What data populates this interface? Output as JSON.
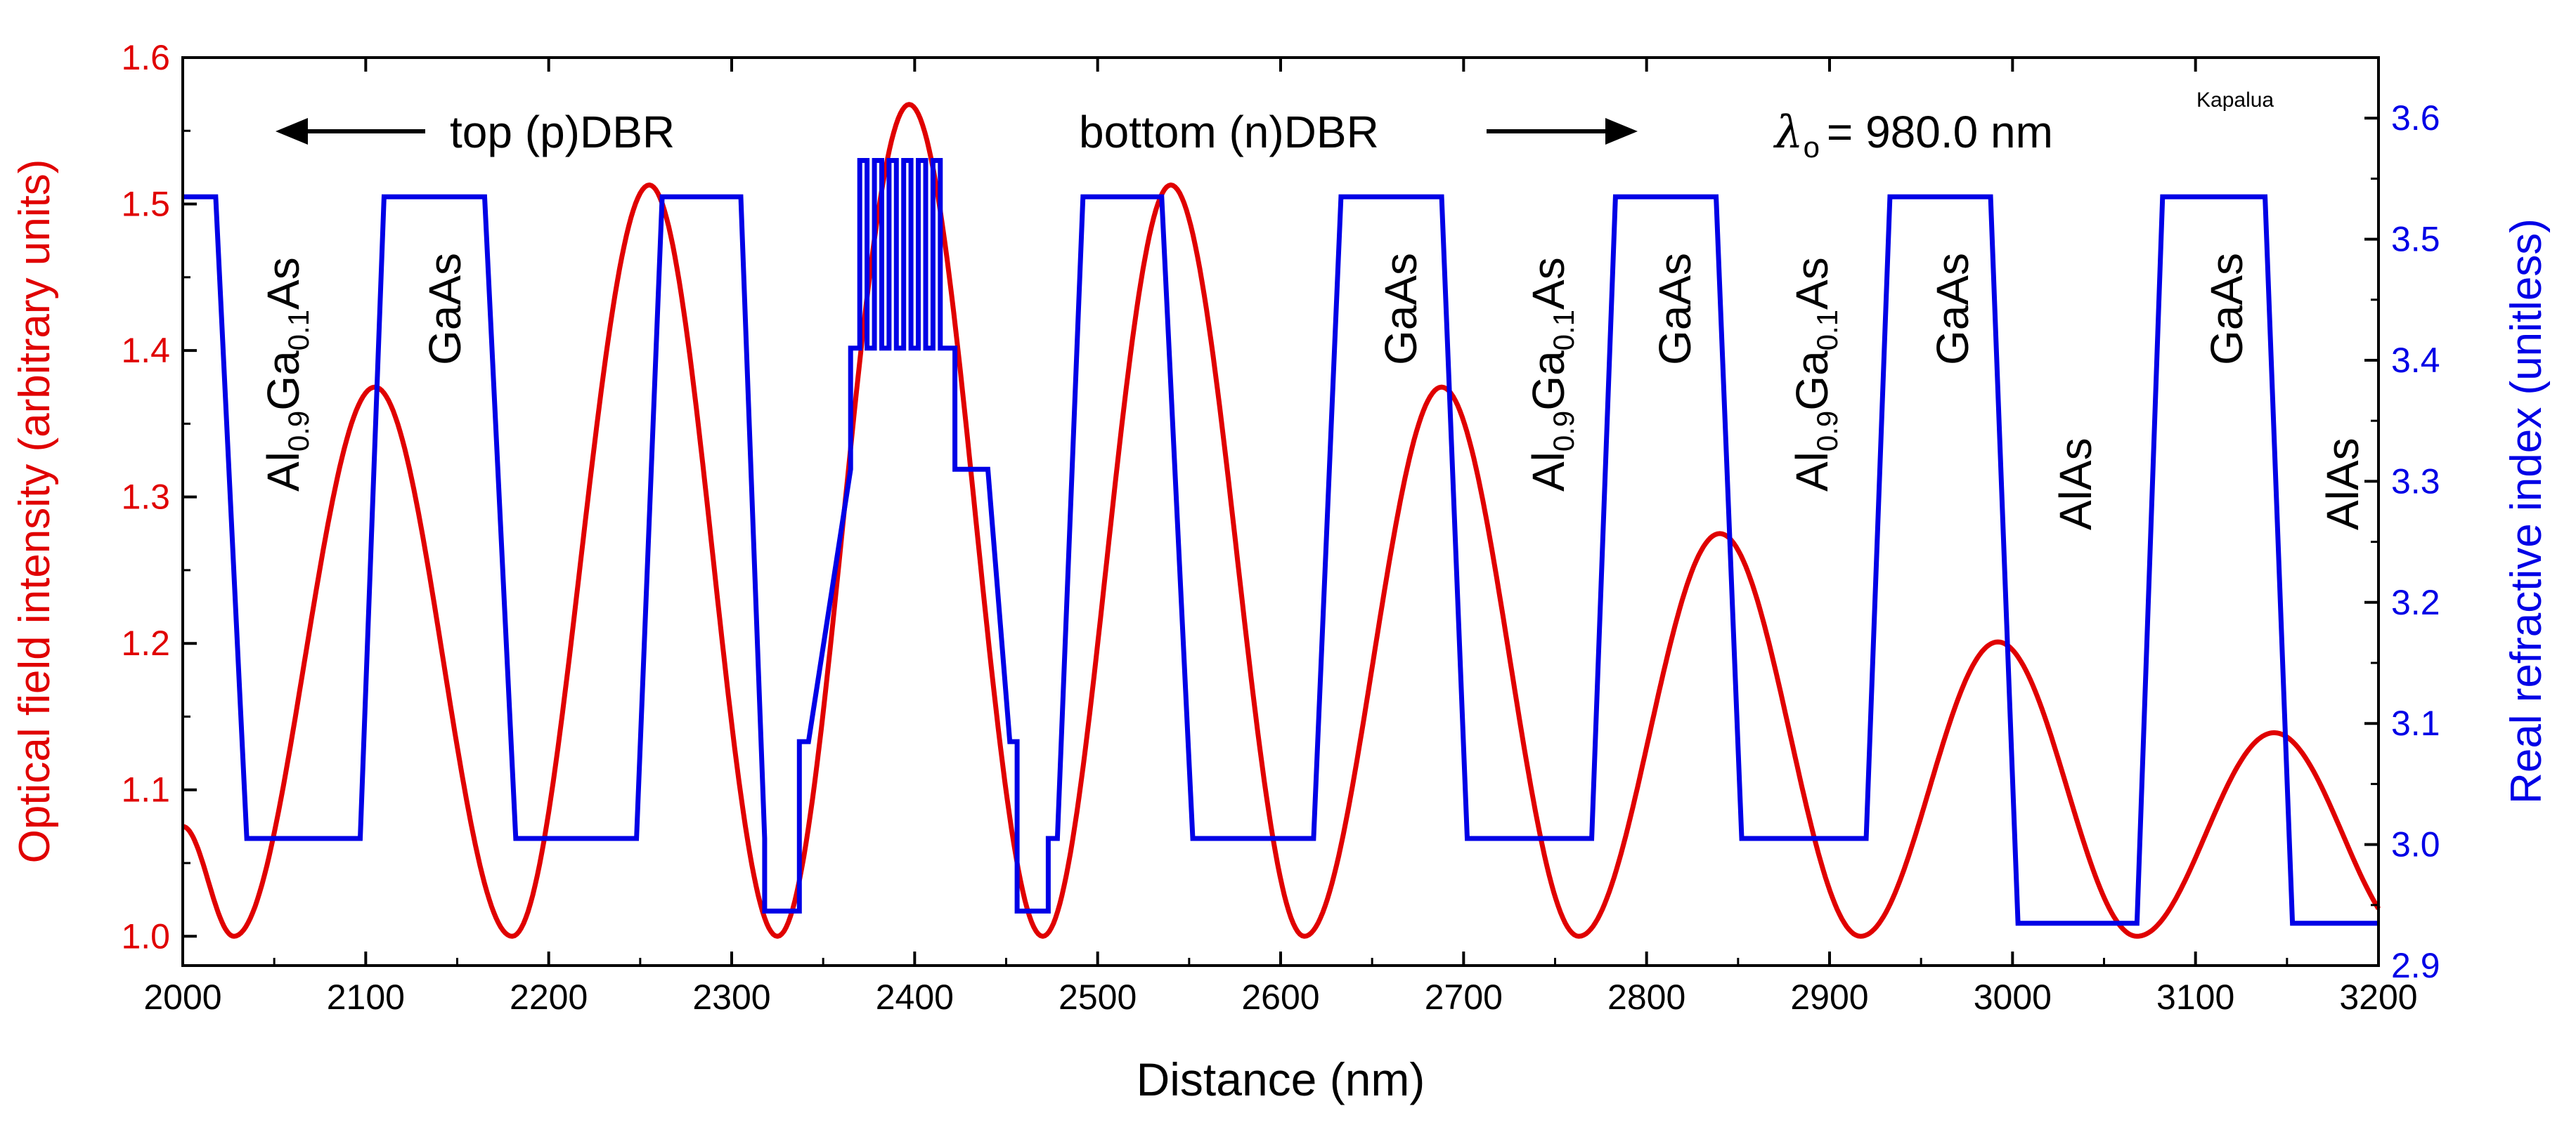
{
  "chart_data": {
    "type": "line",
    "title": "",
    "xlabel": "Distance (nm)",
    "ylabel_left": "Optical field intensity (arbitrary units)",
    "ylabel_right": "Real refractive index (unitless)",
    "xlim": [
      2000,
      3200
    ],
    "ylim_left": [
      0.98,
      1.6
    ],
    "ylim_right": [
      2.9,
      3.65
    ],
    "x_ticks": [
      "2000",
      "2100",
      "2200",
      "2300",
      "2400",
      "2500",
      "2600",
      "2700",
      "2800",
      "2900",
      "3000",
      "3100",
      "3200"
    ],
    "y_left_ticks": [
      "1.0",
      "1.1",
      "1.2",
      "1.3",
      "1.4",
      "1.5",
      "1.6"
    ],
    "y_right_ticks": [
      "2.9",
      "3.0",
      "3.1",
      "3.2",
      "3.3",
      "3.4",
      "3.5",
      "3.6"
    ],
    "colors": {
      "left": "#e00000",
      "right": "#0000e6",
      "axis": "#000000"
    },
    "series": [
      {
        "name": "Optical field intensity",
        "axis": "left",
        "color": "#e00000",
        "peaks": [
          {
            "x": 2105,
            "y": 1.375
          },
          {
            "x": 2255,
            "y": 1.513
          },
          {
            "x": 2397,
            "y": 1.568
          },
          {
            "x": 2540,
            "y": 1.513
          },
          {
            "x": 2688,
            "y": 1.375
          },
          {
            "x": 2840,
            "y": 1.275
          },
          {
            "x": 2992,
            "y": 1.201
          },
          {
            "x": 3143,
            "y": 1.139
          }
        ],
        "minima": [
          {
            "x": 2028,
            "y": 1.0
          },
          {
            "x": 2180,
            "y": 1.0
          },
          {
            "x": 2325,
            "y": 1.0
          },
          {
            "x": 2470,
            "y": 1.0
          },
          {
            "x": 2613,
            "y": 1.0
          },
          {
            "x": 2763,
            "y": 1.0
          },
          {
            "x": 2917,
            "y": 1.0
          },
          {
            "x": 3068,
            "y": 1.0
          }
        ],
        "end_points": [
          {
            "x": 2000,
            "y": 1.075
          },
          {
            "x": 3200,
            "y": 1.03
          }
        ]
      },
      {
        "name": "Real refractive index",
        "axis": "right",
        "color": "#0000e6",
        "points": [
          [
            2000,
            3.535
          ],
          [
            2018,
            3.535
          ],
          [
            2035,
            3.005
          ],
          [
            2097,
            3.005
          ],
          [
            2110,
            3.535
          ],
          [
            2165,
            3.535
          ],
          [
            2182,
            3.005
          ],
          [
            2248,
            3.005
          ],
          [
            2262,
            3.535
          ],
          [
            2305,
            3.535
          ],
          [
            2318,
            3.005
          ],
          [
            2318,
            2.945
          ],
          [
            2337,
            2.945
          ],
          [
            2337,
            3.085
          ],
          [
            2342,
            3.085
          ],
          [
            2365,
            3.31
          ],
          [
            2365,
            3.41
          ],
          [
            2370,
            3.41
          ],
          [
            2370,
            3.565
          ],
          [
            2374,
            3.565
          ],
          [
            2374,
            3.41
          ],
          [
            2378,
            3.41
          ],
          [
            2378,
            3.565
          ],
          [
            2382,
            3.565
          ],
          [
            2382,
            3.41
          ],
          [
            2386,
            3.41
          ],
          [
            2386,
            3.565
          ],
          [
            2390,
            3.565
          ],
          [
            2390,
            3.41
          ],
          [
            2394,
            3.41
          ],
          [
            2394,
            3.565
          ],
          [
            2398,
            3.565
          ],
          [
            2398,
            3.41
          ],
          [
            2402,
            3.41
          ],
          [
            2402,
            3.565
          ],
          [
            2406,
            3.565
          ],
          [
            2406,
            3.41
          ],
          [
            2410,
            3.41
          ],
          [
            2410,
            3.565
          ],
          [
            2414,
            3.565
          ],
          [
            2414,
            3.41
          ],
          [
            2422,
            3.41
          ],
          [
            2422,
            3.31
          ],
          [
            2440,
            3.31
          ],
          [
            2452,
            3.085
          ],
          [
            2456,
            3.085
          ],
          [
            2456,
            2.945
          ],
          [
            2473,
            2.945
          ],
          [
            2473,
            3.005
          ],
          [
            2478,
            3.005
          ],
          [
            2492,
            3.535
          ],
          [
            2535,
            3.535
          ],
          [
            2552,
            3.005
          ],
          [
            2618,
            3.005
          ],
          [
            2633,
            3.535
          ],
          [
            2688,
            3.535
          ],
          [
            2702,
            3.005
          ],
          [
            2770,
            3.005
          ],
          [
            2783,
            3.535
          ],
          [
            2838,
            3.535
          ],
          [
            2852,
            3.005
          ],
          [
            2920,
            3.005
          ],
          [
            2933,
            3.535
          ],
          [
            2988,
            3.535
          ],
          [
            3003,
            2.935
          ],
          [
            3068,
            2.935
          ],
          [
            3082,
            3.535
          ],
          [
            3138,
            3.535
          ],
          [
            3153,
            2.935
          ],
          [
            3200,
            2.935
          ]
        ]
      }
    ],
    "annotations": {
      "top_dbr": "top (p)DBR",
      "bottom_dbr": "bottom (n)DBR",
      "lambda_symbol": "λ",
      "lambda_sub": "o",
      "lambda_value": "= 980.0 nm",
      "credit": "Kapalua",
      "gaas": "GaAs",
      "alas": "AlAs",
      "algaas_al": "Al",
      "algaas_sub1": "0.9",
      "algaas_ga": "Ga",
      "algaas_sub2": "0.1",
      "algaas_as": "As"
    }
  }
}
